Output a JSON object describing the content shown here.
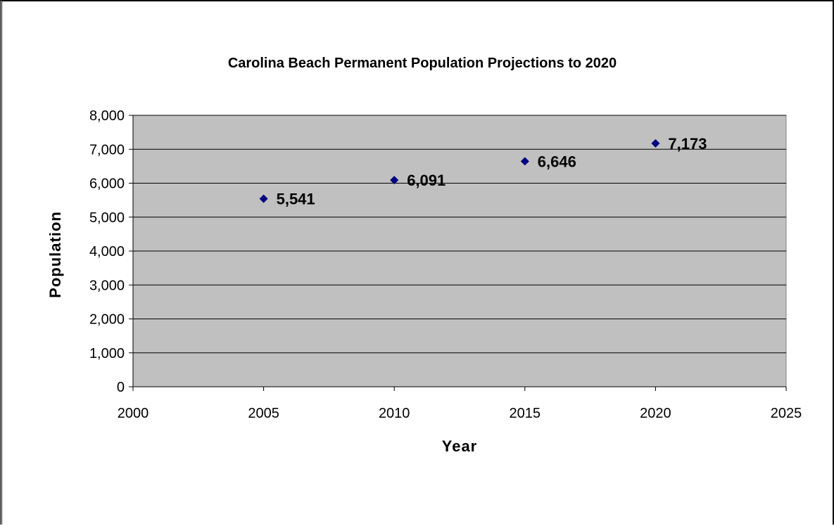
{
  "chart_data": {
    "type": "scatter",
    "title": "Carolina Beach Permanent Population Projections to 2020",
    "xlabel": "Year",
    "ylabel": "Population",
    "xlim": [
      2000,
      2025
    ],
    "ylim": [
      0,
      8000
    ],
    "x_ticks": [
      2000,
      2005,
      2010,
      2015,
      2020,
      2025
    ],
    "y_ticks": [
      0,
      1000,
      2000,
      3000,
      4000,
      5000,
      6000,
      7000,
      8000
    ],
    "x_tick_labels": [
      "2000",
      "2005",
      "2010",
      "2015",
      "2020",
      "2025"
    ],
    "y_tick_labels": [
      "0",
      "1,000",
      "2,000",
      "3,000",
      "4,000",
      "5,000",
      "6,000",
      "7,000",
      "8,000"
    ],
    "grid": "horizontal",
    "legend": "none",
    "series": [
      {
        "x": [
          2005,
          2010,
          2015,
          2020
        ],
        "y": [
          5541,
          6091,
          6646,
          7173
        ],
        "labels": [
          "5,541",
          "6,091",
          "6,646",
          "7,173"
        ]
      }
    ],
    "colors": {
      "plot_background": "#c0c0c0",
      "gridline": "#000000",
      "marker": "#000080",
      "axis": "#000000"
    }
  }
}
